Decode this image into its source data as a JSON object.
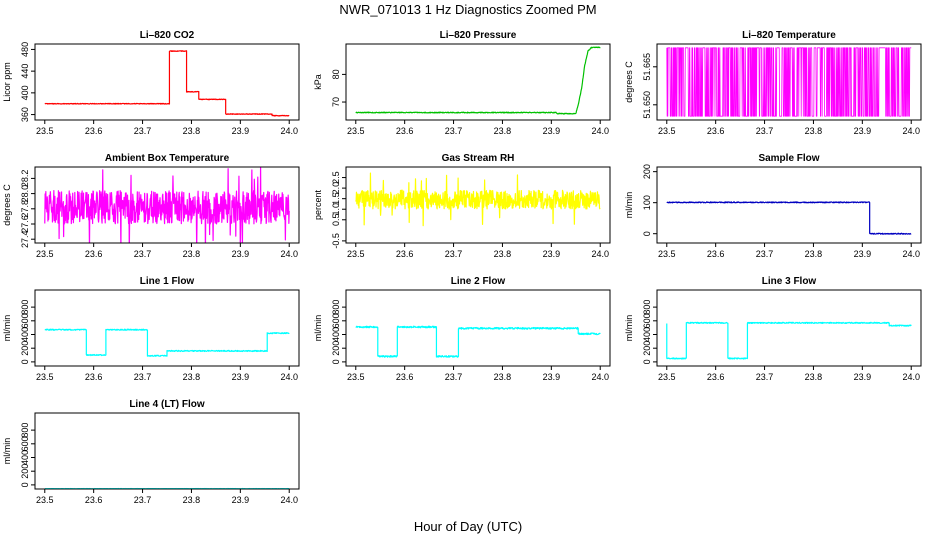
{
  "figure": {
    "title": "NWR_071013  1 Hz Diagnostics Zoomed PM",
    "xlabel": "Hour of Day (UTC)"
  },
  "chart_data": [
    {
      "id": "co2",
      "type": "line",
      "title": "Li–820 CO2",
      "ylabel": "Licor ppm",
      "color": "#ff0000",
      "xlim": [
        23.48,
        24.02
      ],
      "ylim": [
        350,
        490
      ],
      "yticks": [
        "360",
        "400",
        "440",
        "480"
      ],
      "ytick_values": [
        360,
        400,
        440,
        480
      ],
      "xticks": [
        "23.5",
        "23.6",
        "23.7",
        "23.8",
        "23.9",
        "24.0"
      ],
      "xtick_values": [
        23.5,
        23.6,
        23.7,
        23.8,
        23.9,
        24.0
      ],
      "segments": [
        [
          23.5,
          23.755,
          380
        ],
        [
          23.755,
          23.79,
          477
        ],
        [
          23.79,
          23.815,
          402
        ],
        [
          23.815,
          23.87,
          388
        ],
        [
          23.87,
          23.965,
          361
        ],
        [
          23.965,
          24.0,
          358
        ]
      ],
      "noise": 0.6,
      "points": [
        [
          23.5,
          380
        ],
        [
          23.6,
          380
        ],
        [
          23.7,
          380
        ],
        [
          23.755,
          380
        ],
        [
          23.755,
          477
        ],
        [
          23.79,
          477
        ],
        [
          23.79,
          402
        ],
        [
          23.815,
          402
        ],
        [
          23.815,
          388
        ],
        [
          23.87,
          388
        ],
        [
          23.87,
          361
        ],
        [
          23.965,
          361
        ],
        [
          24.0,
          358
        ]
      ]
    },
    {
      "id": "pressure",
      "type": "line",
      "title": "Li–820 Pressure",
      "ylabel": "kPa",
      "color": "#00c000",
      "xlim": [
        23.48,
        24.02
      ],
      "ylim": [
        63.5,
        91
      ],
      "yticks": [
        "70",
        "80"
      ],
      "ytick_values": [
        70,
        80
      ],
      "xticks": [
        "23.5",
        "23.6",
        "23.7",
        "23.8",
        "23.9",
        "24.0"
      ],
      "xtick_values": [
        23.5,
        23.6,
        23.7,
        23.8,
        23.9,
        24.0
      ],
      "points": [
        [
          23.5,
          66.2
        ],
        [
          23.91,
          66.2
        ],
        [
          23.912,
          65.8
        ],
        [
          23.95,
          65.8
        ],
        [
          23.955,
          69
        ],
        [
          23.962,
          75
        ],
        [
          23.968,
          83
        ],
        [
          23.975,
          88.5
        ],
        [
          23.982,
          89.7
        ],
        [
          24.0,
          89.8
        ]
      ],
      "noise": 0.15
    },
    {
      "id": "temp",
      "type": "line",
      "title": "Li–820 Temperature",
      "ylabel": "degrees C",
      "color": "#ff00ff",
      "xlim": [
        23.48,
        24.02
      ],
      "ylim": [
        51.644,
        51.674
      ],
      "yticks": [
        "51.650",
        "51.665"
      ],
      "ytick_values": [
        51.65,
        51.665
      ],
      "xticks": [
        "23.5",
        "23.6",
        "23.7",
        "23.8",
        "23.9",
        "24.0"
      ],
      "xtick_values": [
        23.5,
        23.6,
        23.7,
        23.8,
        23.9,
        24.0
      ],
      "binary_levels": [
        51.6455,
        51.6725
      ]
    },
    {
      "id": "ambient",
      "type": "line",
      "title": "Ambient Box Temperature",
      "ylabel": "degrees C",
      "color": "#ff00ff",
      "xlim": [
        23.48,
        24.02
      ],
      "ylim": [
        27.35,
        28.35
      ],
      "yticks": [
        "27.4",
        "27.6",
        "27.8",
        "28.0",
        "28.2"
      ],
      "ytick_values": [
        27.4,
        27.6,
        27.8,
        28.0,
        28.2
      ],
      "xticks": [
        "23.5",
        "23.6",
        "23.7",
        "23.8",
        "23.9",
        "24.0"
      ],
      "xtick_values": [
        23.5,
        23.6,
        23.7,
        23.8,
        23.9,
        24.0
      ],
      "mean": 27.82,
      "noise": 0.22
    },
    {
      "id": "rh",
      "type": "line",
      "title": "Gas Stream RH",
      "ylabel": "percent",
      "color": "#ffff00",
      "xlim": [
        23.48,
        24.02
      ],
      "ylim": [
        -0.6,
        3.0
      ],
      "yticks": [
        "-0.5",
        "0.5",
        "1.0",
        "1.5",
        "2.0",
        "2.5"
      ],
      "ytick_values": [
        -0.5,
        0.5,
        1.0,
        1.5,
        2.0,
        2.5
      ],
      "xticks": [
        "23.5",
        "23.6",
        "23.7",
        "23.8",
        "23.9",
        "24.0"
      ],
      "xtick_values": [
        23.5,
        23.6,
        23.7,
        23.8,
        23.9,
        24.0
      ],
      "mean": 1.45,
      "noise": 0.45
    },
    {
      "id": "sample",
      "type": "line",
      "title": "Sample Flow",
      "ylabel": "ml/min",
      "color": "#0000c0",
      "xlim": [
        23.48,
        24.02
      ],
      "ylim": [
        -30,
        215
      ],
      "yticks": [
        "0",
        "100",
        "200"
      ],
      "ytick_values": [
        0,
        100,
        200
      ],
      "xticks": [
        "23.5",
        "23.6",
        "23.7",
        "23.8",
        "23.9",
        "24.0"
      ],
      "xtick_values": [
        23.5,
        23.6,
        23.7,
        23.8,
        23.9,
        24.0
      ],
      "segments": [
        [
          23.5,
          23.915,
          101
        ],
        [
          23.915,
          24.0,
          0
        ]
      ],
      "noise": 1.5,
      "points": [
        [
          23.5,
          101
        ],
        [
          23.915,
          101
        ],
        [
          23.915,
          0
        ],
        [
          24.0,
          0
        ]
      ]
    },
    {
      "id": "line1",
      "type": "line",
      "title": "Line 1 Flow",
      "ylabel": "ml/min",
      "color": "#00ffff",
      "xlim": [
        23.48,
        24.02
      ],
      "ylim": [
        -60,
        1050
      ],
      "yticks": [
        "0",
        "200",
        "400",
        "600",
        "800"
      ],
      "ytick_values": [
        0,
        200,
        400,
        600,
        800
      ],
      "xticks": [
        "23.5",
        "23.6",
        "23.7",
        "23.8",
        "23.9",
        "24.0"
      ],
      "xtick_values": [
        23.5,
        23.6,
        23.7,
        23.8,
        23.9,
        24.0
      ],
      "segments": [
        [
          23.5,
          23.585,
          470
        ],
        [
          23.585,
          23.625,
          100
        ],
        [
          23.625,
          23.71,
          470
        ],
        [
          23.71,
          23.75,
          90
        ],
        [
          23.75,
          23.955,
          160
        ],
        [
          23.955,
          24.0,
          420
        ]
      ],
      "noise": 8,
      "points": [
        [
          23.5,
          470
        ],
        [
          23.585,
          470
        ],
        [
          23.585,
          100
        ],
        [
          23.625,
          100
        ],
        [
          23.625,
          470
        ],
        [
          23.71,
          470
        ],
        [
          23.71,
          90
        ],
        [
          23.75,
          90
        ],
        [
          23.75,
          160
        ],
        [
          23.955,
          160
        ],
        [
          23.955,
          420
        ],
        [
          24.0,
          420
        ]
      ]
    },
    {
      "id": "line2",
      "type": "line",
      "title": "Line 2 Flow",
      "ylabel": "ml/min",
      "color": "#00ffff",
      "xlim": [
        23.48,
        24.02
      ],
      "ylim": [
        -60,
        1050
      ],
      "yticks": [
        "0",
        "200",
        "400",
        "600",
        "800"
      ],
      "ytick_values": [
        0,
        200,
        400,
        600,
        800
      ],
      "xticks": [
        "23.5",
        "23.6",
        "23.7",
        "23.8",
        "23.9",
        "24.0"
      ],
      "xtick_values": [
        23.5,
        23.6,
        23.7,
        23.8,
        23.9,
        24.0
      ],
      "segments": [
        [
          23.5,
          23.545,
          510
        ],
        [
          23.545,
          23.585,
          80
        ],
        [
          23.585,
          23.665,
          510
        ],
        [
          23.665,
          23.71,
          80
        ],
        [
          23.71,
          23.955,
          490
        ],
        [
          23.955,
          24.0,
          410
        ]
      ],
      "noise": 12,
      "points": [
        [
          23.5,
          510
        ],
        [
          23.545,
          510
        ],
        [
          23.545,
          80
        ],
        [
          23.585,
          80
        ],
        [
          23.585,
          510
        ],
        [
          23.665,
          510
        ],
        [
          23.665,
          80
        ],
        [
          23.71,
          80
        ],
        [
          23.71,
          490
        ],
        [
          23.955,
          490
        ],
        [
          23.955,
          410
        ],
        [
          24.0,
          410
        ]
      ]
    },
    {
      "id": "line3",
      "type": "line",
      "title": "Line 3 Flow",
      "ylabel": "ml/min",
      "color": "#00ffff",
      "xlim": [
        23.48,
        24.02
      ],
      "ylim": [
        -60,
        1050
      ],
      "yticks": [
        "0",
        "200",
        "400",
        "600",
        "800"
      ],
      "ytick_values": [
        0,
        200,
        400,
        600,
        800
      ],
      "xticks": [
        "23.5",
        "23.6",
        "23.7",
        "23.8",
        "23.9",
        "24.0"
      ],
      "xtick_values": [
        23.5,
        23.6,
        23.7,
        23.8,
        23.9,
        24.0
      ],
      "segments": [
        [
          23.5,
          23.54,
          50
        ],
        [
          23.54,
          23.625,
          570
        ],
        [
          23.625,
          23.665,
          50
        ],
        [
          23.665,
          23.955,
          570
        ],
        [
          23.955,
          24.0,
          530
        ]
      ],
      "noise": 8,
      "points": [
        [
          23.5,
          560
        ],
        [
          23.5,
          50
        ],
        [
          23.54,
          50
        ],
        [
          23.54,
          570
        ],
        [
          23.625,
          570
        ],
        [
          23.625,
          50
        ],
        [
          23.665,
          50
        ],
        [
          23.665,
          570
        ],
        [
          23.955,
          570
        ],
        [
          23.955,
          530
        ],
        [
          24.0,
          530
        ]
      ]
    },
    {
      "id": "line4",
      "type": "line",
      "title": "Line 4 (LT) Flow",
      "ylabel": "ml/min",
      "color": "#00ffff",
      "xlim": [
        23.48,
        24.02
      ],
      "ylim": [
        -60,
        1050
      ],
      "yticks": [
        "0",
        "200",
        "400",
        "600",
        "800"
      ],
      "ytick_values": [
        0,
        200,
        400,
        600,
        800
      ],
      "xticks": [
        "23.5",
        "23.6",
        "23.7",
        "23.8",
        "23.9",
        "24.0"
      ],
      "xtick_values": [
        23.5,
        23.6,
        23.7,
        23.8,
        23.9,
        24.0
      ],
      "segments": [
        [
          23.5,
          24.0,
          -55
        ]
      ],
      "noise": 2,
      "points": [
        [
          23.5,
          -55
        ],
        [
          24.0,
          -55
        ]
      ]
    }
  ]
}
